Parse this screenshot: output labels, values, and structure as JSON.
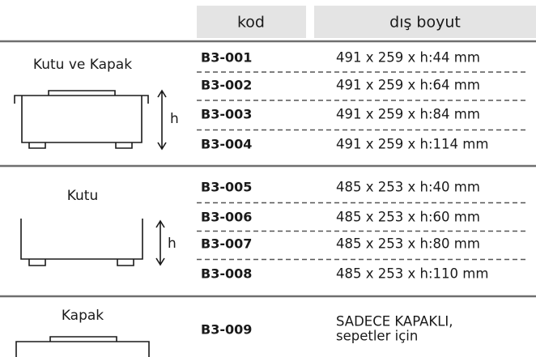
{
  "header": {
    "code": "kod",
    "size": "dış boyut"
  },
  "groups": [
    {
      "name": "Kutu ve Kapak",
      "dim_label": "h",
      "rows": [
        {
          "code": "B3-001",
          "size": "491 x 259 x h:44 mm"
        },
        {
          "code": "B3-002",
          "size": "491 x 259 x h:64 mm"
        },
        {
          "code": "B3-003",
          "size": "491 x 259 x h:84 mm"
        },
        {
          "code": "B3-004",
          "size": "491 x 259 x h:114 mm"
        }
      ]
    },
    {
      "name": "Kutu",
      "dim_label": "h",
      "rows": [
        {
          "code": "B3-005",
          "size": "485 x 253 x h:40 mm"
        },
        {
          "code": "B3-006",
          "size": "485 x 253 x h:60 mm"
        },
        {
          "code": "B3-007",
          "size": "485 x 253 x h:80 mm"
        },
        {
          "code": "B3-008",
          "size": "485 x 253 x h:110 mm"
        }
      ]
    },
    {
      "name": "Kapak",
      "rows": [
        {
          "code": "B3-009",
          "size": [
            "SADECE KAPAKLI,",
            "sepetler için"
          ]
        }
      ]
    }
  ]
}
